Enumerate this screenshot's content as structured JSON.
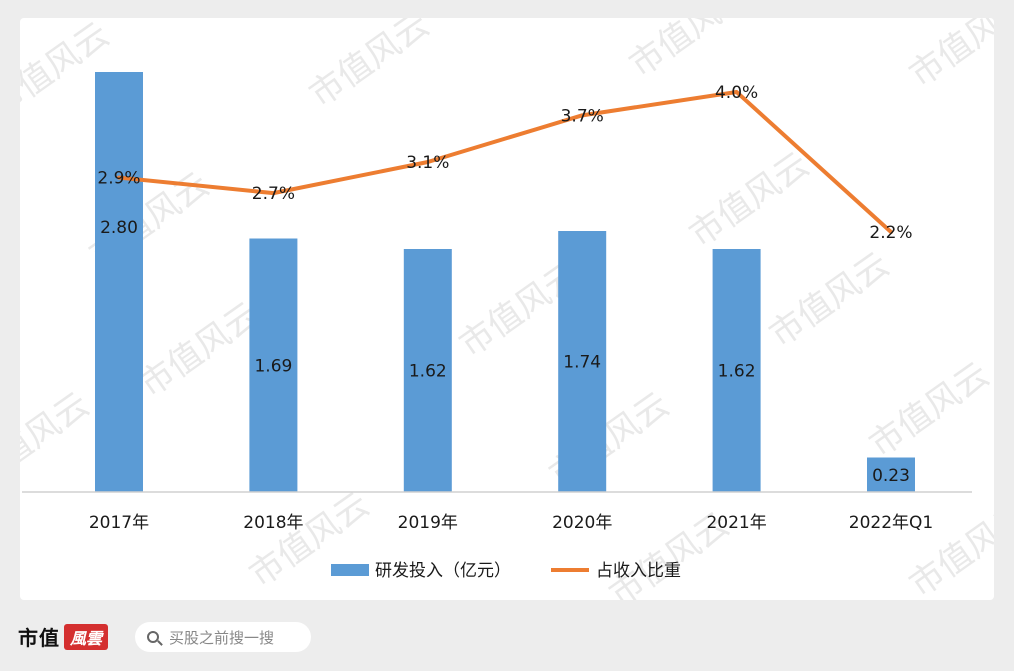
{
  "chart_data": {
    "type": "bar+line",
    "categories": [
      "2017年",
      "2018年",
      "2019年",
      "2020年",
      "2021年",
      "2022年Q1"
    ],
    "series": [
      {
        "name": "研发投入（亿元）",
        "type": "bar",
        "color": "#5b9bd5",
        "values": [
          2.8,
          1.69,
          1.62,
          1.74,
          1.62,
          0.23
        ],
        "labels": [
          "2.80",
          "1.69",
          "1.62",
          "1.74",
          "1.62",
          "0.23"
        ]
      },
      {
        "name": "占收入比重",
        "type": "line",
        "color": "#ed7d31",
        "values": [
          2.9,
          2.7,
          3.1,
          3.7,
          4.0,
          2.2
        ],
        "labels": [
          "2.9%",
          "2.7%",
          "3.1%",
          "3.7%",
          "4.0%",
          "2.2%"
        ]
      }
    ],
    "legend_position": "bottom",
    "grid": false
  },
  "watermark": "市值风云",
  "footer": {
    "brand": "市值",
    "brand_badge": "風雲",
    "search_placeholder": "买股之前搜一搜"
  }
}
